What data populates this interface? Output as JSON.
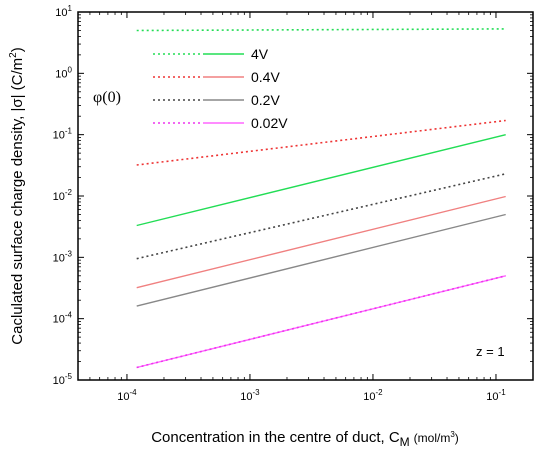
{
  "chart_data": {
    "type": "line",
    "xlabel": "Concentration in the centre of duct, C",
    "xlabel_sub": "M",
    "xlabel_unit": "(mol/m",
    "xlabel_unit_sup": "3",
    "xlabel_unit_close": ")",
    "ylabel": "Caclulated surface charge density, |σ| (C/m",
    "ylabel_sup": "2",
    "ylabel_close": ")",
    "x_scale": "log",
    "y_scale": "log",
    "xlim": [
      4e-05,
      0.2
    ],
    "ylim": [
      1e-05,
      10
    ],
    "x_ticks": [
      {
        "base": "10",
        "exp": "-4",
        "value": 0.0001
      },
      {
        "base": "10",
        "exp": "-3",
        "value": 0.001
      },
      {
        "base": "10",
        "exp": "-2",
        "value": 0.01
      },
      {
        "base": "10",
        "exp": "-1",
        "value": 0.1
      }
    ],
    "y_ticks": [
      {
        "base": "10",
        "exp": "-5",
        "value": 1e-05
      },
      {
        "base": "10",
        "exp": "-4",
        "value": 0.0001
      },
      {
        "base": "10",
        "exp": "-3",
        "value": 0.001
      },
      {
        "base": "10",
        "exp": "-2",
        "value": 0.01
      },
      {
        "base": "10",
        "exp": "-1",
        "value": 0.1
      },
      {
        "base": "10",
        "exp": "0",
        "value": 1
      },
      {
        "base": "10",
        "exp": "1",
        "value": 10
      }
    ],
    "legend_title": "φ(0)",
    "legend_position": "top-left",
    "annotation": "z = 1",
    "grid": false,
    "series": [
      {
        "name": "4V",
        "color": "#22dd55",
        "style": "solid",
        "x": [
          0.00012,
          0.12
        ],
        "y": [
          0.0033,
          0.1
        ]
      },
      {
        "name": "4V",
        "color": "#22dd55",
        "style": "dotted",
        "x": [
          0.00012,
          0.12
        ],
        "y": [
          5.0,
          5.3
        ]
      },
      {
        "name": "0.4V",
        "color": "#f08080",
        "style": "solid",
        "x": [
          0.00012,
          0.12
        ],
        "y": [
          0.00032,
          0.0098
        ]
      },
      {
        "name": "0.4V",
        "color": "#ee3333",
        "style": "dotted",
        "x": [
          0.00012,
          0.12
        ],
        "y": [
          0.032,
          0.17
        ]
      },
      {
        "name": "0.2V",
        "color": "#888888",
        "style": "solid",
        "x": [
          0.00012,
          0.12
        ],
        "y": [
          0.00016,
          0.005
        ]
      },
      {
        "name": "0.2V",
        "color": "#444444",
        "style": "dotted",
        "x": [
          0.00012,
          0.12
        ],
        "y": [
          0.00095,
          0.023
        ]
      },
      {
        "name": "0.02V",
        "color": "#ff66ff",
        "style": "solid",
        "x": [
          0.00012,
          0.12
        ],
        "y": [
          1.6e-05,
          0.0005
        ]
      },
      {
        "name": "0.02V",
        "color": "#ee33ee",
        "style": "dotted",
        "x": [
          0.00012,
          0.12
        ],
        "y": [
          1.6e-05,
          0.0005
        ]
      }
    ],
    "legend": [
      {
        "label": "4V",
        "solid_color": "#22dd55",
        "dot_color": "#22dd55"
      },
      {
        "label": "0.4V",
        "solid_color": "#f08080",
        "dot_color": "#ee3333"
      },
      {
        "label": "0.2V",
        "solid_color": "#888888",
        "dot_color": "#444444"
      },
      {
        "label": "0.02V",
        "solid_color": "#ff66ff",
        "dot_color": "#ee33ee"
      }
    ]
  }
}
